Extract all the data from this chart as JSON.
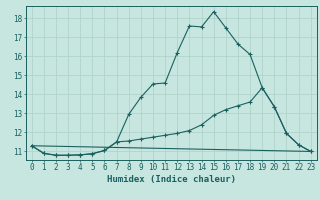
{
  "xlabel": "Humidex (Indice chaleur)",
  "bg_color": "#c8e6e0",
  "grid_color": "#b0d4cc",
  "line_color": "#1a6060",
  "xlim": [
    -0.5,
    23.5
  ],
  "ylim": [
    10.55,
    18.65
  ],
  "yticks": [
    11,
    12,
    13,
    14,
    15,
    16,
    17,
    18
  ],
  "xticks": [
    0,
    1,
    2,
    3,
    4,
    5,
    6,
    7,
    8,
    9,
    10,
    11,
    12,
    13,
    14,
    15,
    16,
    17,
    18,
    19,
    20,
    21,
    22,
    23
  ],
  "line1_x": [
    0,
    1,
    2,
    3,
    4,
    5,
    6,
    7,
    8,
    9,
    10,
    11,
    12,
    13,
    14,
    15,
    16,
    17,
    18,
    19,
    20,
    21,
    22,
    23
  ],
  "line1_y": [
    11.3,
    10.9,
    10.8,
    10.8,
    10.82,
    10.88,
    11.05,
    11.5,
    12.95,
    13.85,
    14.55,
    14.6,
    16.2,
    17.6,
    17.55,
    18.35,
    17.5,
    16.65,
    16.1,
    14.35,
    13.35,
    11.95,
    11.35,
    11.0
  ],
  "line2_x": [
    0,
    1,
    2,
    3,
    4,
    5,
    6,
    7,
    8,
    9,
    10,
    11,
    12,
    13,
    14,
    15,
    16,
    17,
    18,
    19,
    20,
    21,
    22,
    23
  ],
  "line2_y": [
    11.3,
    10.9,
    10.8,
    10.8,
    10.82,
    10.88,
    11.05,
    11.5,
    11.55,
    11.65,
    11.75,
    11.85,
    11.95,
    12.1,
    12.4,
    12.9,
    13.2,
    13.4,
    13.6,
    14.35,
    13.35,
    11.95,
    11.35,
    11.0
  ],
  "line3_x": [
    0,
    23
  ],
  "line3_y": [
    11.3,
    11.0
  ]
}
